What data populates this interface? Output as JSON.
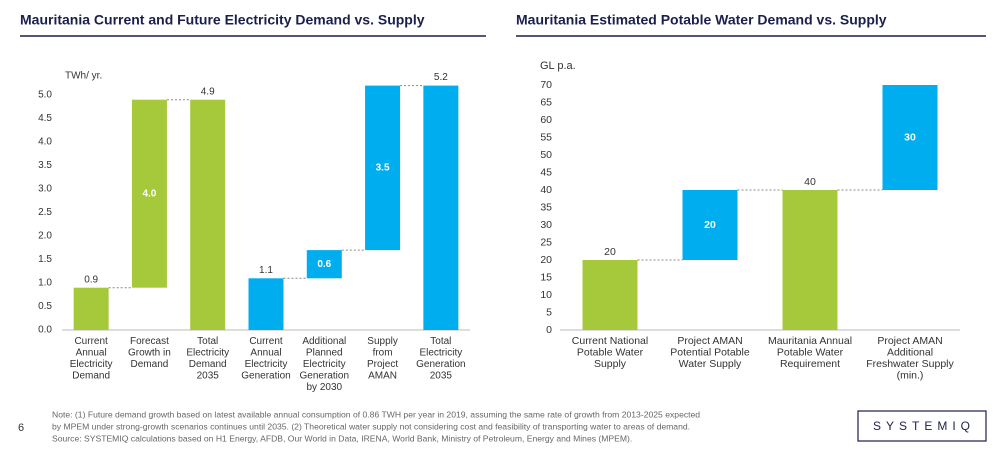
{
  "chart_data": [
    {
      "type": "waterfall",
      "title": "Mauritania Current and Future Electricity Demand vs. Supply",
      "y_label": "TWh/ yr.",
      "categories": [
        "Current Annual Electricity Demand",
        "Forecast Growth in Demand",
        "Total Electricity Demand 2035",
        "Current Annual Electricity Generation",
        "Additional Planned Electricity Generation by 2030",
        "Supply from Project AMAN",
        "Total Electricity Generation 2035"
      ],
      "values": [
        0.9,
        4.0,
        4.9,
        1.1,
        0.6,
        3.5,
        5.2
      ],
      "value_labels": [
        "0.9",
        "4.0",
        "4.9",
        "1.1",
        "0.6",
        "3.5",
        "5.2"
      ],
      "measures": [
        "absolute",
        "relative",
        "total",
        "absolute",
        "relative",
        "relative",
        "total"
      ],
      "colors": [
        "#a6c93b",
        "#a6c93b",
        "#a6c93b",
        "#00aeef",
        "#00aeef",
        "#00aeef",
        "#00aeef"
      ],
      "ylim": [
        0,
        5
      ],
      "yticks": [
        {
          "value": 0,
          "label": "0.0"
        },
        {
          "value": 0.5,
          "label": "0.5"
        },
        {
          "value": 1,
          "label": "1.0"
        },
        {
          "value": 1.5,
          "label": "1.5"
        },
        {
          "value": 2,
          "label": "2.0"
        },
        {
          "value": 2.5,
          "label": "2.5"
        },
        {
          "value": 3,
          "label": "3.0"
        },
        {
          "value": 3.5,
          "label": "3.5"
        },
        {
          "value": 4,
          "label": "4.0"
        },
        {
          "value": 4.5,
          "label": "4.5"
        },
        {
          "value": 5,
          "label": "5.0"
        }
      ]
    },
    {
      "type": "waterfall",
      "title": "Mauritania Estimated Potable Water Demand vs. Supply",
      "y_label": "GL p.a.",
      "categories": [
        "Current National Potable Water Supply",
        "Project AMAN Potential Potable Water Supply",
        "Mauritania Annual Potable Water Requirement",
        "Project AMAN Additional Freshwater Supply (min.)"
      ],
      "values": [
        20,
        20,
        40,
        30
      ],
      "measures": [
        "absolute",
        "relative",
        "absolute",
        "relative"
      ],
      "colors": [
        "#a6c93b",
        "#00aeef",
        "#a6c93b",
        "#00aeef"
      ],
      "ylim": [
        0,
        70
      ],
      "yticks": [
        0,
        5,
        10,
        15,
        20,
        25,
        30,
        35,
        40,
        45,
        50,
        55,
        60,
        65,
        70
      ]
    }
  ],
  "footer": {
    "page_number": "6",
    "note": [
      "Note: (1) Future demand growth based on latest available annual consumption of 0.86 TWH per year in 2019, assuming the same rate of growth from 2013-2025 expected",
      "by MPEM under strong-growth scenarios continues until 2035. (2) Theoretical water supply not considering cost and feasibility of transporting water to areas of demand.",
      "Source: SYSTEMIQ calculations based on H1 Energy, AFDB, Our World in Data, IRENA, World Bank, Ministry of Petroleum, Energy and Mines (MPEM)."
    ],
    "logo": "SYSTEMIQ"
  }
}
